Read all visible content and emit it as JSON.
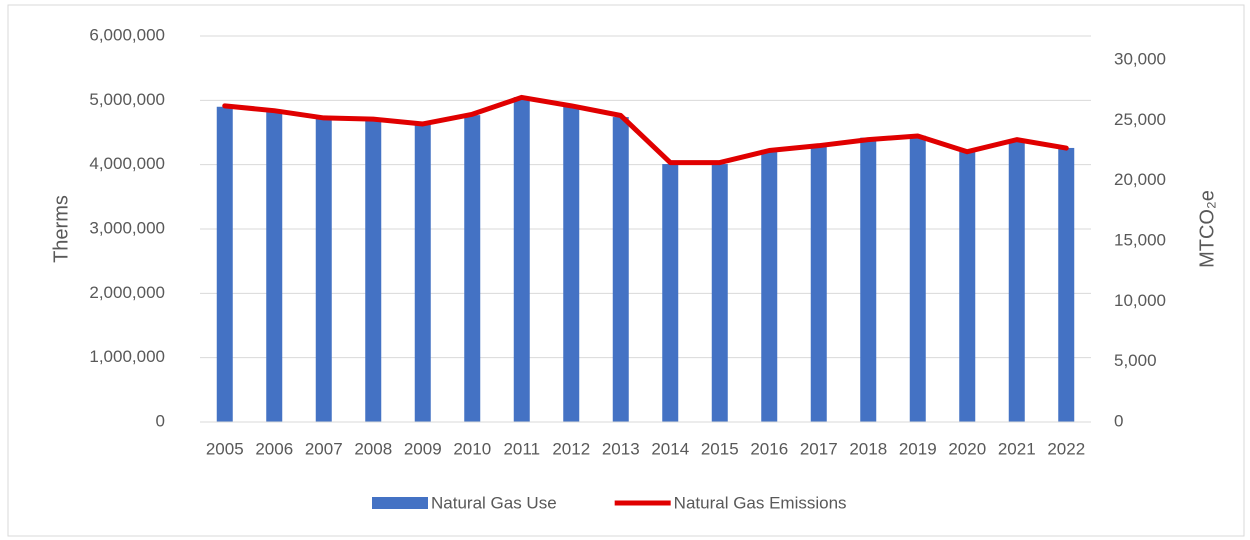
{
  "chart_data": {
    "type": "bar",
    "categories": [
      "2005",
      "2006",
      "2007",
      "2008",
      "2009",
      "2010",
      "2011",
      "2012",
      "2013",
      "2014",
      "2015",
      "2016",
      "2017",
      "2018",
      "2019",
      "2020",
      "2021",
      "2022"
    ],
    "series": [
      {
        "name": "Natural Gas Use",
        "type": "bar",
        "color": "#4472c4",
        "values": [
          4900000,
          4840000,
          4730000,
          4730000,
          4630000,
          4770000,
          5050000,
          4910000,
          4740000,
          4010000,
          4010000,
          4230000,
          4290000,
          4420000,
          4450000,
          4200000,
          4390000,
          4260000
        ]
      },
      {
        "name": "Natural Gas Emissions",
        "type": "line",
        "axis": "y2",
        "color": "#e00000",
        "values": [
          26200,
          25800,
          25200,
          25100,
          24700,
          25500,
          26900,
          26200,
          25400,
          21500,
          21500,
          22500,
          22900,
          23400,
          23700,
          22400,
          23400,
          22700
        ]
      }
    ],
    "ylabel": "Therms",
    "y2label": "MTCO₂e",
    "ylim": [
      0,
      6000000
    ],
    "yticks": [
      0,
      {
        "value": 1000000,
        "label": "1,000,000"
      },
      {
        "value": 2000000,
        "label": "2,000,000"
      },
      {
        "value": 3000000,
        "label": "3,000,000"
      },
      {
        "value": 4000000,
        "label": "4,000,000"
      },
      {
        "value": 5000000,
        "label": "5,000,000"
      },
      {
        "value": 6000000,
        "label": "6,000,000"
      }
    ],
    "y2lim": [
      0,
      30000
    ],
    "y2ticks": [
      0,
      {
        "value": 5000,
        "label": "5,000"
      },
      {
        "value": 10000,
        "label": "10,000"
      },
      {
        "value": 15000,
        "label": "15,000"
      },
      {
        "value": 20000,
        "label": "20,000"
      },
      {
        "value": 25000,
        "label": "25,000"
      },
      {
        "value": 30000,
        "label": "30,000"
      }
    ],
    "grid": true,
    "legend": "bottom"
  }
}
